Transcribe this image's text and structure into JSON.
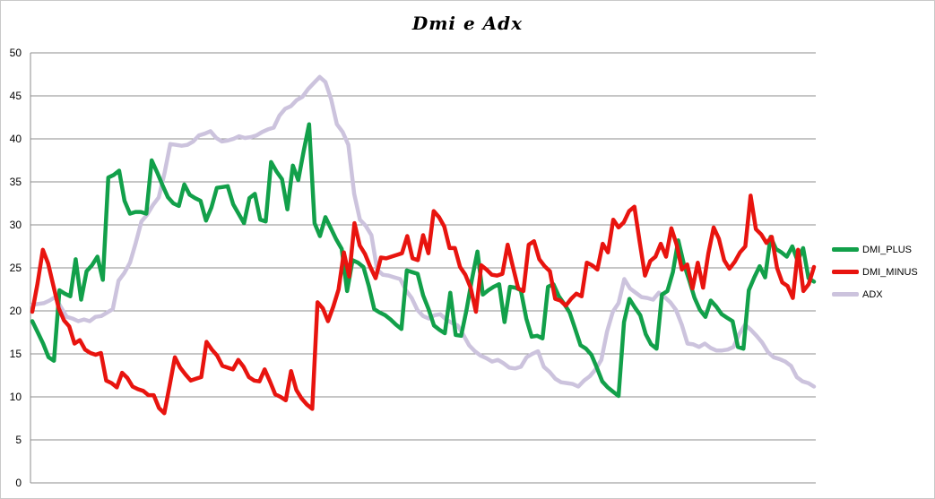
{
  "chart_data": {
    "type": "line",
    "title": "Dmi e Adx",
    "xlabel": "",
    "ylabel": "",
    "ylim": [
      0,
      50
    ],
    "yticks": [
      "0",
      "5",
      "10",
      "15",
      "20",
      "25",
      "30",
      "35",
      "40",
      "45",
      "50"
    ],
    "grid": "horizontal",
    "legend_position": "right",
    "series": [
      {
        "name": "DMI_PLUS",
        "color": "#12a04a",
        "values": [
          18.8,
          17.5,
          16.2,
          14.6,
          14.2,
          22.4,
          22,
          21.7,
          26,
          21.3,
          24.6,
          25.3,
          26.3,
          23.6,
          35.5,
          35.8,
          36.3,
          32.8,
          31.3,
          31.5,
          31.5,
          31.3,
          37.5,
          36.1,
          34.6,
          33.2,
          32.5,
          32.2,
          34.7,
          33.5,
          33.1,
          32.8,
          30.5,
          32,
          34.3,
          34.4,
          34.5,
          32.4,
          31.3,
          30.2,
          33.1,
          33.6,
          30.6,
          30.4,
          37.3,
          36.2,
          35.3,
          31.8,
          36.9,
          35.2,
          38.6,
          41.7,
          30.2,
          28.7,
          30.9,
          29.6,
          28.3,
          27.2,
          22.3,
          25.9,
          25.6,
          25.1,
          22.9,
          20.2,
          19.8,
          19.5,
          19,
          18.4,
          17.9,
          24.7,
          24.5,
          24.3,
          21.8,
          20.2,
          18.3,
          17.8,
          17.4,
          22.1,
          17.2,
          17.1,
          20.1,
          23.7,
          26.9,
          21.9,
          22.4,
          22.8,
          23.1,
          18.7,
          22.8,
          22.7,
          22.4,
          19.1,
          17,
          17.1,
          16.8,
          22.8,
          23.1,
          21.7,
          20.8,
          19.8,
          17.9,
          16,
          15.6,
          14.9,
          13.4,
          11.8,
          11.1,
          10.6,
          10.1,
          18.7,
          21.4,
          20.4,
          19.5,
          17.3,
          16.1,
          15.6,
          21.9,
          22.3,
          24.5,
          28.2,
          25.5,
          23.6,
          21.5,
          20.1,
          19.3,
          21.2,
          20.5,
          19.6,
          19.2,
          18.8,
          15.8,
          15.6,
          22.4,
          23.9,
          25.2,
          23.9,
          28.6,
          27.2,
          26.8,
          26.3,
          27.5,
          25.8,
          27.3,
          23.8,
          23.4
        ]
      },
      {
        "name": "DMI_MINUS",
        "color": "#e8140f",
        "values": [
          19.9,
          23.2,
          27.1,
          25.5,
          22.9,
          20.3,
          18.9,
          18.2,
          16.2,
          16.6,
          15.5,
          15.1,
          14.9,
          15.1,
          11.9,
          11.6,
          11.1,
          12.8,
          12.2,
          11.2,
          10.9,
          10.7,
          10.2,
          10.2,
          8.7,
          8.1,
          11.3,
          14.6,
          13.4,
          12.6,
          11.9,
          12.1,
          12.3,
          16.4,
          15.5,
          14.8,
          13.6,
          13.4,
          13.2,
          14.3,
          13.5,
          12.3,
          11.9,
          11.8,
          13.2,
          11.8,
          10.3,
          10,
          9.6,
          13,
          10.8,
          9.8,
          9.1,
          8.6,
          21,
          20.3,
          18.8,
          20.5,
          22.5,
          26.8,
          24,
          30.2,
          27.6,
          26.6,
          25.1,
          23.8,
          26.2,
          26.1,
          26.3,
          26.5,
          26.7,
          28.7,
          26.1,
          25.9,
          28.8,
          26.7,
          31.6,
          30.9,
          29.8,
          27.3,
          27.3,
          25.1,
          24.2,
          22.7,
          19.9,
          25.3,
          24.8,
          24.2,
          24.1,
          24.3,
          27.7,
          25.1,
          22.6,
          22.3,
          27.7,
          28.1,
          26,
          25.2,
          24.6,
          21.4,
          21.2,
          20.6,
          21.4,
          22,
          21.7,
          25.6,
          25.3,
          24.8,
          27.8,
          26.8,
          30.6,
          29.7,
          30.3,
          31.6,
          32.1,
          28,
          24.1,
          25.8,
          26.3,
          27.8,
          26.3,
          29.6,
          27.7,
          24.8,
          25.4,
          22.6,
          25.6,
          22.7,
          26.7,
          29.7,
          28.4,
          25.9,
          24.9,
          25.7,
          26.8,
          27.5,
          33.4,
          29.5,
          28.9,
          27.9,
          28.6,
          25,
          23.3,
          22.9,
          21.5,
          27.1,
          22.3,
          23.1,
          25.1
        ]
      },
      {
        "name": "ADX",
        "color": "#ccc3dd",
        "values": [
          20.7,
          20.8,
          20.9,
          21.2,
          21.6,
          20.4,
          19.3,
          19.1,
          18.8,
          19,
          18.8,
          19.3,
          19.4,
          19.8,
          20.2,
          23.5,
          24.4,
          25.6,
          27.9,
          30.4,
          31.2,
          32.3,
          33.2,
          36,
          39.4,
          39.3,
          39.2,
          39.3,
          39.7,
          40.4,
          40.6,
          40.9,
          40.1,
          39.7,
          39.8,
          40,
          40.3,
          40.1,
          40.2,
          40.4,
          40.8,
          41.1,
          41.3,
          42.7,
          43.5,
          43.8,
          44.5,
          44.9,
          45.8,
          46.5,
          47.2,
          46.6,
          44.6,
          41.7,
          40.8,
          39.3,
          33.6,
          30.6,
          29.9,
          28.8,
          24.8,
          24.2,
          24.1,
          23.9,
          23.7,
          22.4,
          21.5,
          20.1,
          19.4,
          19.1,
          19.5,
          19.6,
          19,
          18.6,
          18.3,
          17.2,
          16,
          15.3,
          14.8,
          14.5,
          14.1,
          14.3,
          13.9,
          13.4,
          13.3,
          13.5,
          14.6,
          15,
          15.3,
          13.5,
          12.9,
          12.1,
          11.7,
          11.6,
          11.5,
          11.2,
          11.9,
          12.4,
          13.2,
          14.3,
          17.6,
          19.9,
          20.9,
          23.7,
          22.6,
          22.1,
          21.6,
          21.5,
          21.3,
          22.1,
          21.6,
          21,
          20.1,
          18.4,
          16.2,
          16.1,
          15.8,
          16.2,
          15.7,
          15.4,
          15.4,
          15.5,
          15.8,
          17.3,
          18.4,
          17.8,
          17.1,
          16.3,
          15.2,
          14.6,
          14.4,
          14.1,
          13.6,
          12.3,
          11.8,
          11.6,
          11.2
        ]
      }
    ]
  }
}
